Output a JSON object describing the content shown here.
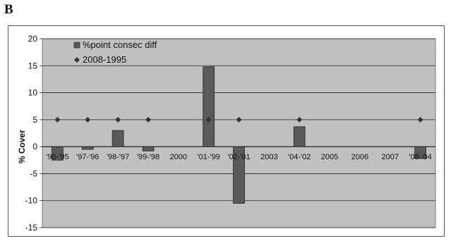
{
  "panel_label": "B",
  "chart_data": {
    "type": "bar",
    "title": "",
    "xlabel": "",
    "ylabel": "% Cover",
    "ylim": [
      -15,
      20
    ],
    "yticks": [
      20,
      15,
      10,
      5,
      0,
      -5,
      -10,
      -15
    ],
    "grid": true,
    "legend_position": "top-left",
    "categories": [
      "'96-'95",
      "'97-'96",
      "'98-'97",
      "'99-'98",
      "2000",
      "'01-'99",
      "'02-'01",
      "2003",
      "'04-'02",
      "2005",
      "2006",
      "2007",
      "'08-'04"
    ],
    "series": [
      {
        "name": "%point consec diff",
        "type": "bar",
        "color": "#5a5a5a",
        "values": [
          -2.5,
          -0.5,
          3,
          -0.8,
          null,
          14.8,
          -10.5,
          null,
          3.7,
          null,
          null,
          null,
          -2.2
        ]
      },
      {
        "name": "2008-1995",
        "type": "marker",
        "marker": "diamond",
        "color": "#333333",
        "values": [
          5,
          5,
          5,
          5,
          null,
          5,
          5,
          null,
          5,
          null,
          null,
          null,
          5
        ]
      }
    ],
    "colors": {
      "plot_background": "#c0c0c0",
      "gridline": "#222222"
    }
  }
}
